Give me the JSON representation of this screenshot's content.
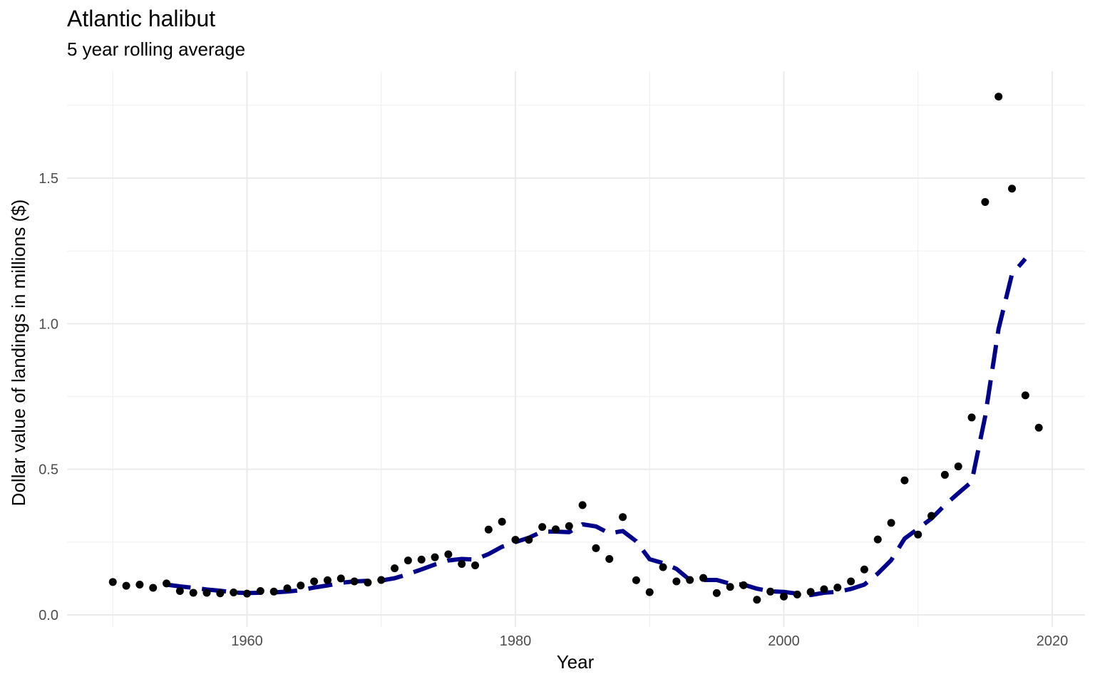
{
  "chart_data": {
    "type": "scatter",
    "title": "Atlantic halibut",
    "subtitle": "5 year rolling average",
    "xlabel": "Year",
    "ylabel": "Dollar value of landings in millions ($)",
    "xlim": [
      1946.5,
      2022.5
    ],
    "ylim": [
      0,
      1.75
    ],
    "x_ticks": [
      1960,
      1980,
      2000,
      2020
    ],
    "x_tick_labels": [
      "1960",
      "1980",
      "2000",
      "2020"
    ],
    "y_ticks": [
      0,
      0.5,
      1.0,
      1.5
    ],
    "y_tick_labels": [
      "0.0",
      "0.5",
      "1.0",
      "1.5"
    ],
    "grid": true,
    "series": [
      {
        "kind": "points",
        "color": "#000000",
        "x": [
          1950,
          1951,
          1952,
          1953,
          1954,
          1955,
          1956,
          1957,
          1958,
          1959,
          1960,
          1961,
          1962,
          1963,
          1964,
          1965,
          1966,
          1967,
          1968,
          1969,
          1970,
          1971,
          1972,
          1973,
          1974,
          1975,
          1976,
          1977,
          1978,
          1979,
          1980,
          1981,
          1982,
          1983,
          1984,
          1985,
          1986,
          1987,
          1988,
          1989,
          1990,
          1991,
          1992,
          1993,
          1994,
          1995,
          1996,
          1997,
          1998,
          1999,
          2000,
          2001,
          2002,
          2003,
          2004,
          2005,
          2006,
          2007,
          2008,
          2009,
          2010,
          2011,
          2012,
          2013,
          2014,
          2015,
          2016,
          2017,
          2018,
          2019
        ],
        "y": [
          0.113,
          0.1,
          0.104,
          0.093,
          0.108,
          0.082,
          0.076,
          0.076,
          0.074,
          0.077,
          0.073,
          0.082,
          0.08,
          0.091,
          0.101,
          0.115,
          0.119,
          0.125,
          0.115,
          0.111,
          0.12,
          0.16,
          0.187,
          0.19,
          0.198,
          0.208,
          0.175,
          0.17,
          0.293,
          0.32,
          0.258,
          0.258,
          0.302,
          0.294,
          0.305,
          0.377,
          0.229,
          0.192,
          0.336,
          0.119,
          0.078,
          0.164,
          0.115,
          0.12,
          0.127,
          0.075,
          0.096,
          0.102,
          0.052,
          0.08,
          0.063,
          0.07,
          0.079,
          0.088,
          0.094,
          0.115,
          0.156,
          0.259,
          0.316,
          0.462,
          0.276,
          0.34,
          0.481,
          0.51,
          0.678,
          1.418,
          1.78,
          1.464,
          0.754,
          0.643
        ]
      },
      {
        "kind": "line",
        "style": "dashed",
        "color": "#00008B",
        "x": [
          1954,
          1955,
          1956,
          1957,
          1958,
          1959,
          1960,
          1961,
          1962,
          1963,
          1964,
          1965,
          1966,
          1967,
          1968,
          1969,
          1970,
          1971,
          1972,
          1973,
          1974,
          1975,
          1976,
          1977,
          1978,
          1979,
          1980,
          1981,
          1982,
          1983,
          1984,
          1985,
          1986,
          1987,
          1988,
          1989,
          1990,
          1991,
          1992,
          1993,
          1994,
          1995,
          1996,
          1997,
          1998,
          1999,
          2000,
          2001,
          2002,
          2003,
          2004,
          2005,
          2006,
          2007,
          2008,
          2009,
          2010,
          2011,
          2012,
          2013,
          2014,
          2015,
          2016,
          2017,
          2018
        ],
        "y": [
          0.104,
          0.098,
          0.093,
          0.087,
          0.083,
          0.077,
          0.075,
          0.076,
          0.077,
          0.08,
          0.085,
          0.094,
          0.101,
          0.11,
          0.115,
          0.117,
          0.118,
          0.126,
          0.14,
          0.156,
          0.173,
          0.187,
          0.192,
          0.19,
          0.209,
          0.234,
          0.25,
          0.265,
          0.286,
          0.286,
          0.284,
          0.311,
          0.304,
          0.28,
          0.288,
          0.253,
          0.191,
          0.178,
          0.158,
          0.12,
          0.12,
          0.12,
          0.107,
          0.104,
          0.09,
          0.081,
          0.079,
          0.073,
          0.068,
          0.076,
          0.079,
          0.089,
          0.104,
          0.142,
          0.188,
          0.262,
          0.296,
          0.331,
          0.377,
          0.418,
          0.457,
          0.681,
          0.982,
          1.17,
          1.223
        ]
      }
    ]
  }
}
